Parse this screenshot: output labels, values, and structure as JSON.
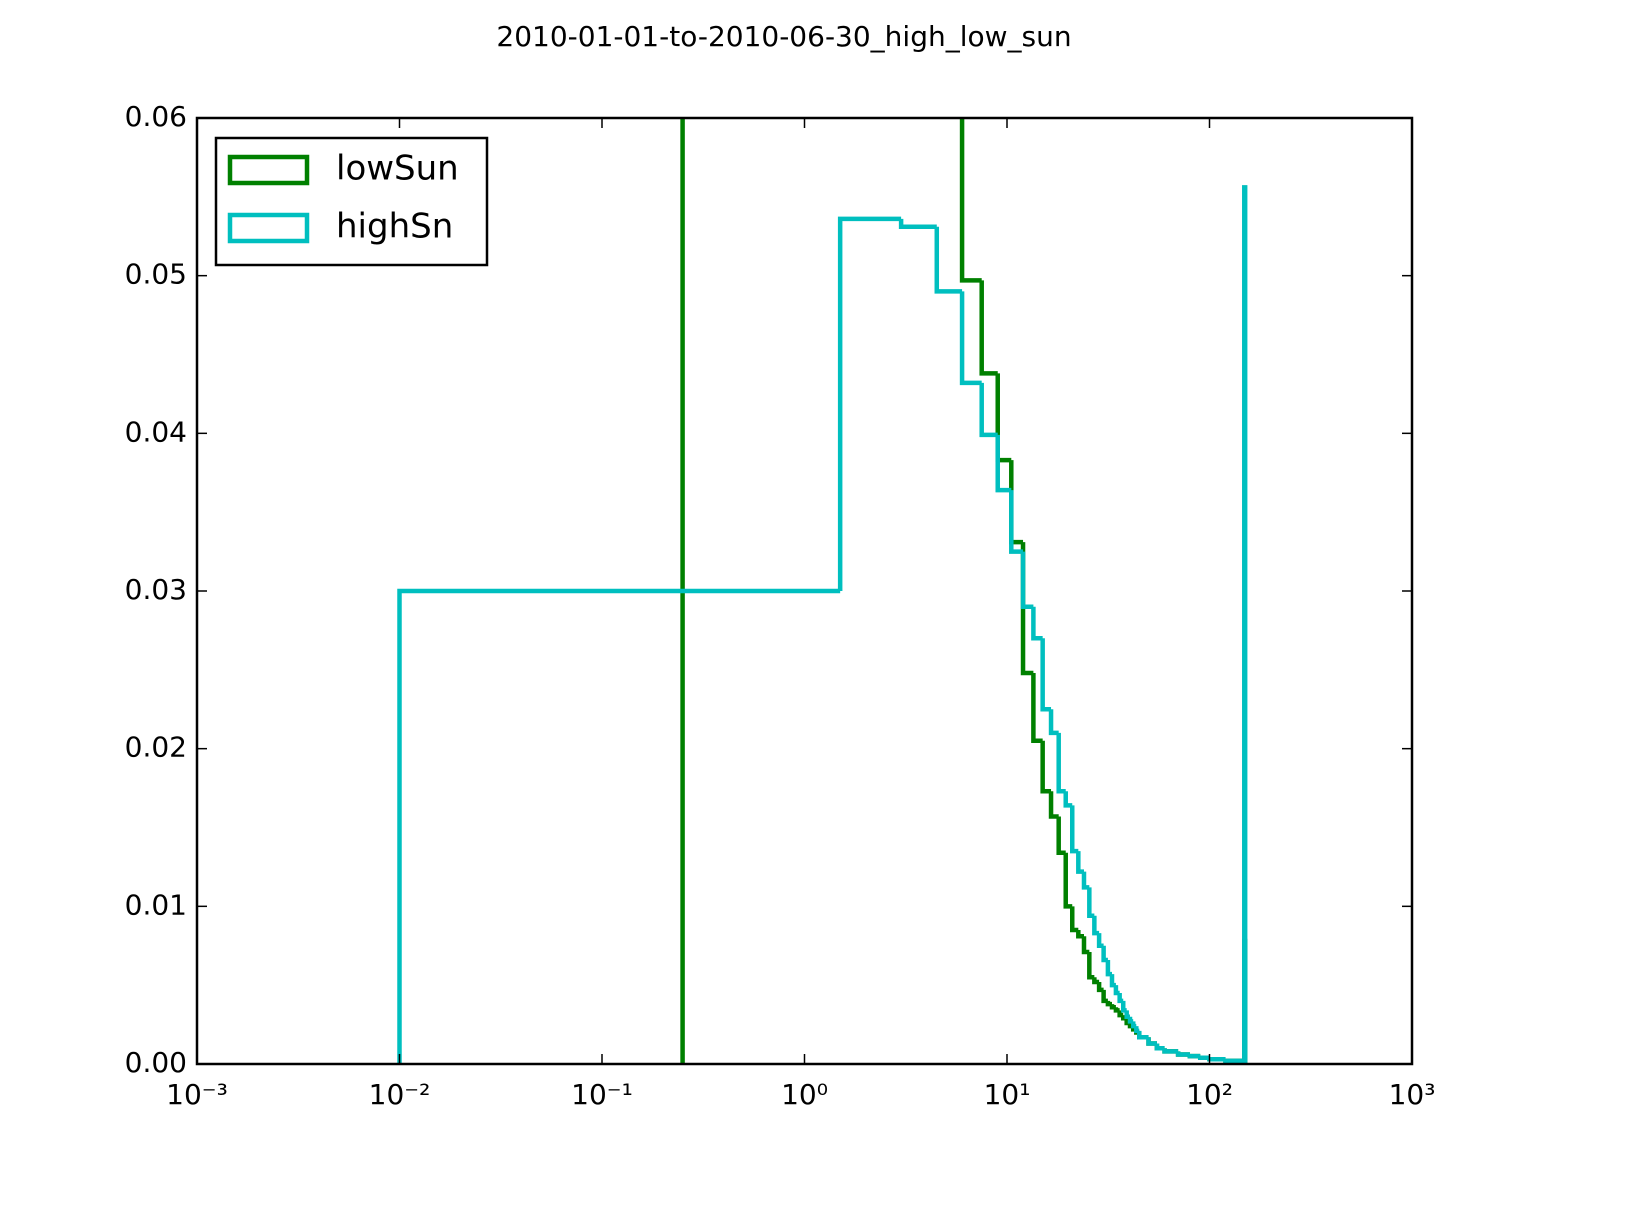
{
  "chart_data": {
    "type": "histogram-step",
    "title": "2010-01-01-to-2010-06-30_high_low_sun",
    "xscale": "log",
    "xlim": [
      0.001,
      1000
    ],
    "xticks": [
      {
        "value": 0.001,
        "label": "10⁻³"
      },
      {
        "value": 0.01,
        "label": "10⁻²"
      },
      {
        "value": 0.1,
        "label": "10⁻¹"
      },
      {
        "value": 1,
        "label": "10⁰"
      },
      {
        "value": 10,
        "label": "10¹"
      },
      {
        "value": 100,
        "label": "10²"
      },
      {
        "value": 1000,
        "label": "10³"
      }
    ],
    "ylim": [
      0,
      0.06
    ],
    "yticks": [
      {
        "value": 0,
        "label": "0.00"
      },
      0.01,
      0.02,
      0.03,
      0.04,
      0.05,
      0.06
    ],
    "legend": "upper left",
    "series": [
      {
        "name": "lowSun",
        "color": "#008000",
        "bins": [
          0.25,
          6,
          7.5,
          9,
          10.5,
          12,
          13.5,
          15,
          16.5,
          18,
          19.5,
          21,
          22.5,
          24,
          25.5,
          27,
          28.5,
          30,
          31.5,
          33,
          34.5,
          36,
          37.5,
          39,
          40.5,
          42,
          43.5,
          45,
          50,
          55,
          60,
          70,
          80,
          90,
          100,
          120,
          148.5,
          150
        ],
        "values": [
          0.08,
          0.0497,
          0.0438,
          0.0383,
          0.0331,
          0.0248,
          0.0205,
          0.0173,
          0.0157,
          0.0134,
          0.01,
          0.0085,
          0.0081,
          0.0071,
          0.0055,
          0.0052,
          0.0047,
          0.004,
          0.0038,
          0.0036,
          0.0034,
          0.0031,
          0.0029,
          0.0026,
          0.0024,
          0.0022,
          0.002,
          0.0017,
          0.0013,
          0.001,
          0.0008,
          0.0006,
          0.0005,
          0.0004,
          0.0003,
          0.0002,
          0.0078
        ]
      },
      {
        "name": "highSn",
        "color": "#00bfbf",
        "bins": [
          0.01,
          1.5,
          3,
          4.5,
          6,
          7.5,
          9,
          10.5,
          12,
          13.5,
          15,
          16.5,
          18,
          19.5,
          21,
          22.5,
          24,
          25.5,
          27,
          28.5,
          30,
          31.5,
          33,
          34.5,
          36,
          37.5,
          39,
          40.5,
          42,
          43.5,
          45,
          50,
          55,
          60,
          70,
          80,
          90,
          100,
          120,
          148.5,
          150
        ],
        "values": [
          0.03,
          0.0536,
          0.0531,
          0.049,
          0.0432,
          0.0399,
          0.0364,
          0.0325,
          0.029,
          0.027,
          0.0225,
          0.021,
          0.0173,
          0.0164,
          0.0135,
          0.0122,
          0.0112,
          0.0094,
          0.0083,
          0.0075,
          0.0066,
          0.0057,
          0.005,
          0.0045,
          0.004,
          0.0034,
          0.003,
          0.0027,
          0.0024,
          0.0021,
          0.0017,
          0.0013,
          0.001,
          0.0008,
          0.0006,
          0.0005,
          0.0004,
          0.0003,
          0.0002,
          0.0556
        ]
      }
    ]
  }
}
